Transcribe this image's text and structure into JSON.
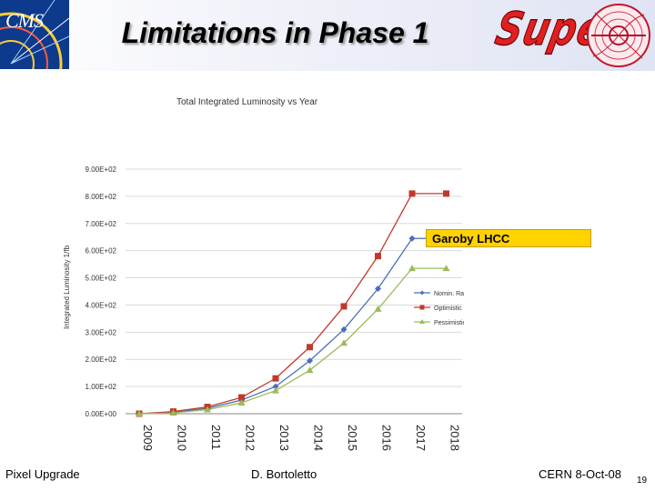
{
  "header": {
    "title": "Limitations in Phase 1",
    "logo_left_text": "CMS",
    "logo_right_text": "Super"
  },
  "annotation": "Garoby LHCC",
  "footer": {
    "left": "Pixel Upgrade",
    "center": "D. Bortoletto",
    "right": "CERN 8-Oct-08",
    "page": "19"
  },
  "chart_data": {
    "type": "line",
    "title": "Total Integrated Luminosity vs Year",
    "xlabel": "",
    "ylabel": "Integrated Luminosity 1/fb",
    "categories": [
      "2009",
      "2010",
      "2011",
      "2012",
      "2013",
      "2014",
      "2015",
      "2016",
      "2017",
      "2018"
    ],
    "ylim": [
      0,
      900
    ],
    "yticks": [
      "0.00E+00",
      "1.00E+02",
      "2.00E+02",
      "3.00E+02",
      "4.00E+02",
      "5.00E+02",
      "6.00E+02",
      "7.00E+02",
      "8.00E+02",
      "9.00E+02"
    ],
    "legend_position": "right",
    "series": [
      {
        "name": "Nomin. Ramp",
        "color": "#4a6fb8",
        "marker": "diamond",
        "values": [
          0,
          5,
          20,
          50,
          100,
          195,
          310,
          460,
          645,
          645
        ]
      },
      {
        "name": "Optimistic",
        "color": "#c0392b",
        "marker": "square",
        "values": [
          0,
          8,
          25,
          60,
          130,
          245,
          395,
          580,
          810,
          810
        ]
      },
      {
        "name": "Pessimistic",
        "color": "#9bbb59",
        "marker": "triangle",
        "values": [
          0,
          3,
          15,
          40,
          85,
          160,
          260,
          385,
          535,
          535
        ]
      }
    ]
  }
}
